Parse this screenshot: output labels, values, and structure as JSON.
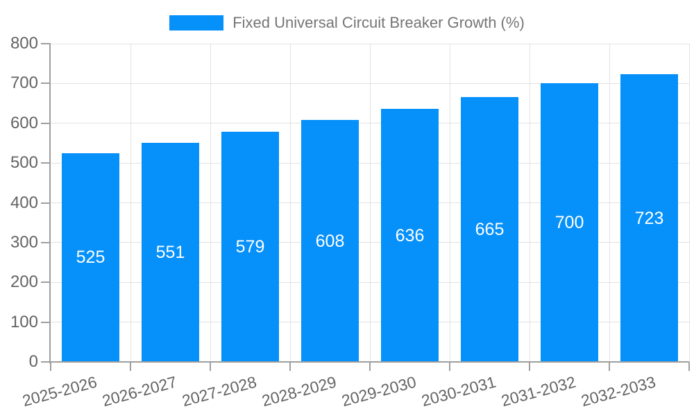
{
  "legend": {
    "label": "Fixed Universal Circuit Breaker Growth (%)",
    "position": "top-center"
  },
  "chart_data": {
    "type": "bar",
    "title": "",
    "series_name": "Fixed Universal Circuit Breaker Growth (%)",
    "categories": [
      "2025-2026",
      "2026-2027",
      "2027-2028",
      "2028-2029",
      "2029-2030",
      "2030-2031",
      "2031-2032",
      "2032-2033"
    ],
    "values": [
      525,
      551,
      579,
      608,
      636,
      665,
      700,
      723
    ],
    "value_labels": [
      "525",
      "551",
      "579",
      "608",
      "636",
      "665",
      "700",
      "723"
    ],
    "xlabel": "",
    "ylabel": "",
    "ylim": [
      0,
      800
    ],
    "ytick_step": 100,
    "yticks": [
      0,
      100,
      200,
      300,
      400,
      500,
      600,
      700,
      800
    ],
    "grid": true,
    "legend_position": "top",
    "x_tick_label_rotation_deg": -15
  },
  "colors": {
    "bar": "#0590fa",
    "value_label_text": "#ffffff",
    "axis_line": "#9e9e9e",
    "grid_line": "#e2e2e2",
    "tick_label_text": "#646464",
    "legend_text": "#757575",
    "background": "#ffffff"
  }
}
